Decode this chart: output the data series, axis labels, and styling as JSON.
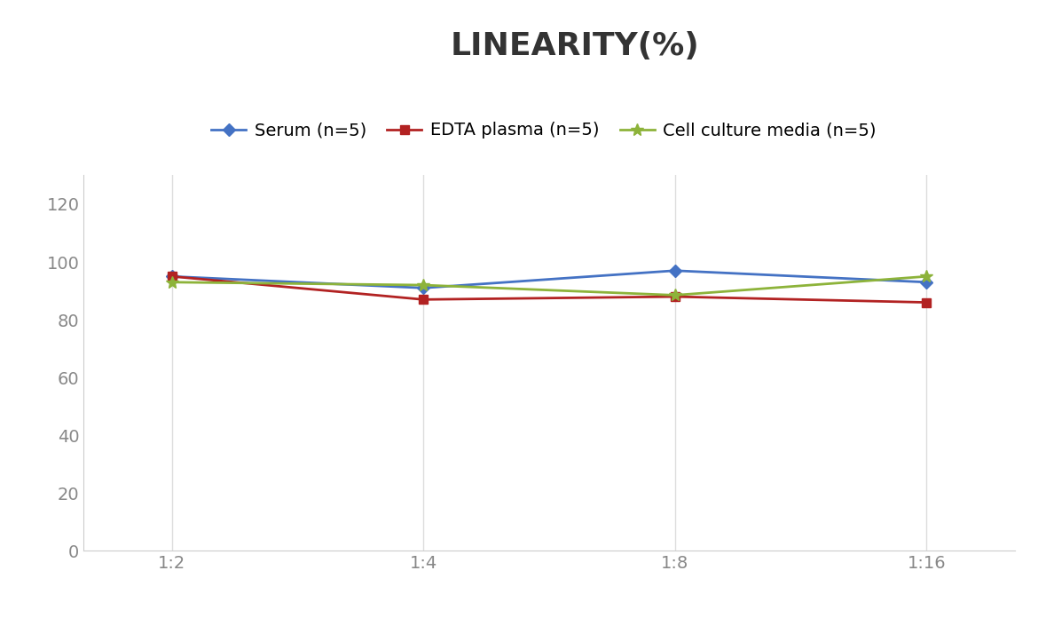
{
  "title": "LINEARITY(%)",
  "title_fontsize": 26,
  "title_fontweight": "bold",
  "x_labels": [
    "1:2",
    "1:4",
    "1:8",
    "1:16"
  ],
  "x_positions": [
    0,
    1,
    2,
    3
  ],
  "series": [
    {
      "label": "Serum (n=5)",
      "values": [
        95.0,
        91.0,
        97.0,
        93.0
      ],
      "color": "#4472C4",
      "marker": "D",
      "markersize": 7,
      "linewidth": 2
    },
    {
      "label": "EDTA plasma (n=5)",
      "values": [
        95.0,
        87.0,
        88.0,
        86.0
      ],
      "color": "#B22222",
      "marker": "s",
      "markersize": 7,
      "linewidth": 2
    },
    {
      "label": "Cell culture media (n=5)",
      "values": [
        93.0,
        92.0,
        88.5,
        95.0
      ],
      "color": "#8DB33A",
      "marker": "*",
      "markersize": 10,
      "linewidth": 2
    }
  ],
  "ylim": [
    0,
    130
  ],
  "yticks": [
    0,
    20,
    40,
    60,
    80,
    100,
    120
  ],
  "ylabel": "",
  "xlabel": "",
  "grid_color": "#DDDDDD",
  "background_color": "#FFFFFF",
  "legend_fontsize": 14,
  "tick_fontsize": 14,
  "tick_color": "#888888",
  "spine_color": "#CCCCCC"
}
